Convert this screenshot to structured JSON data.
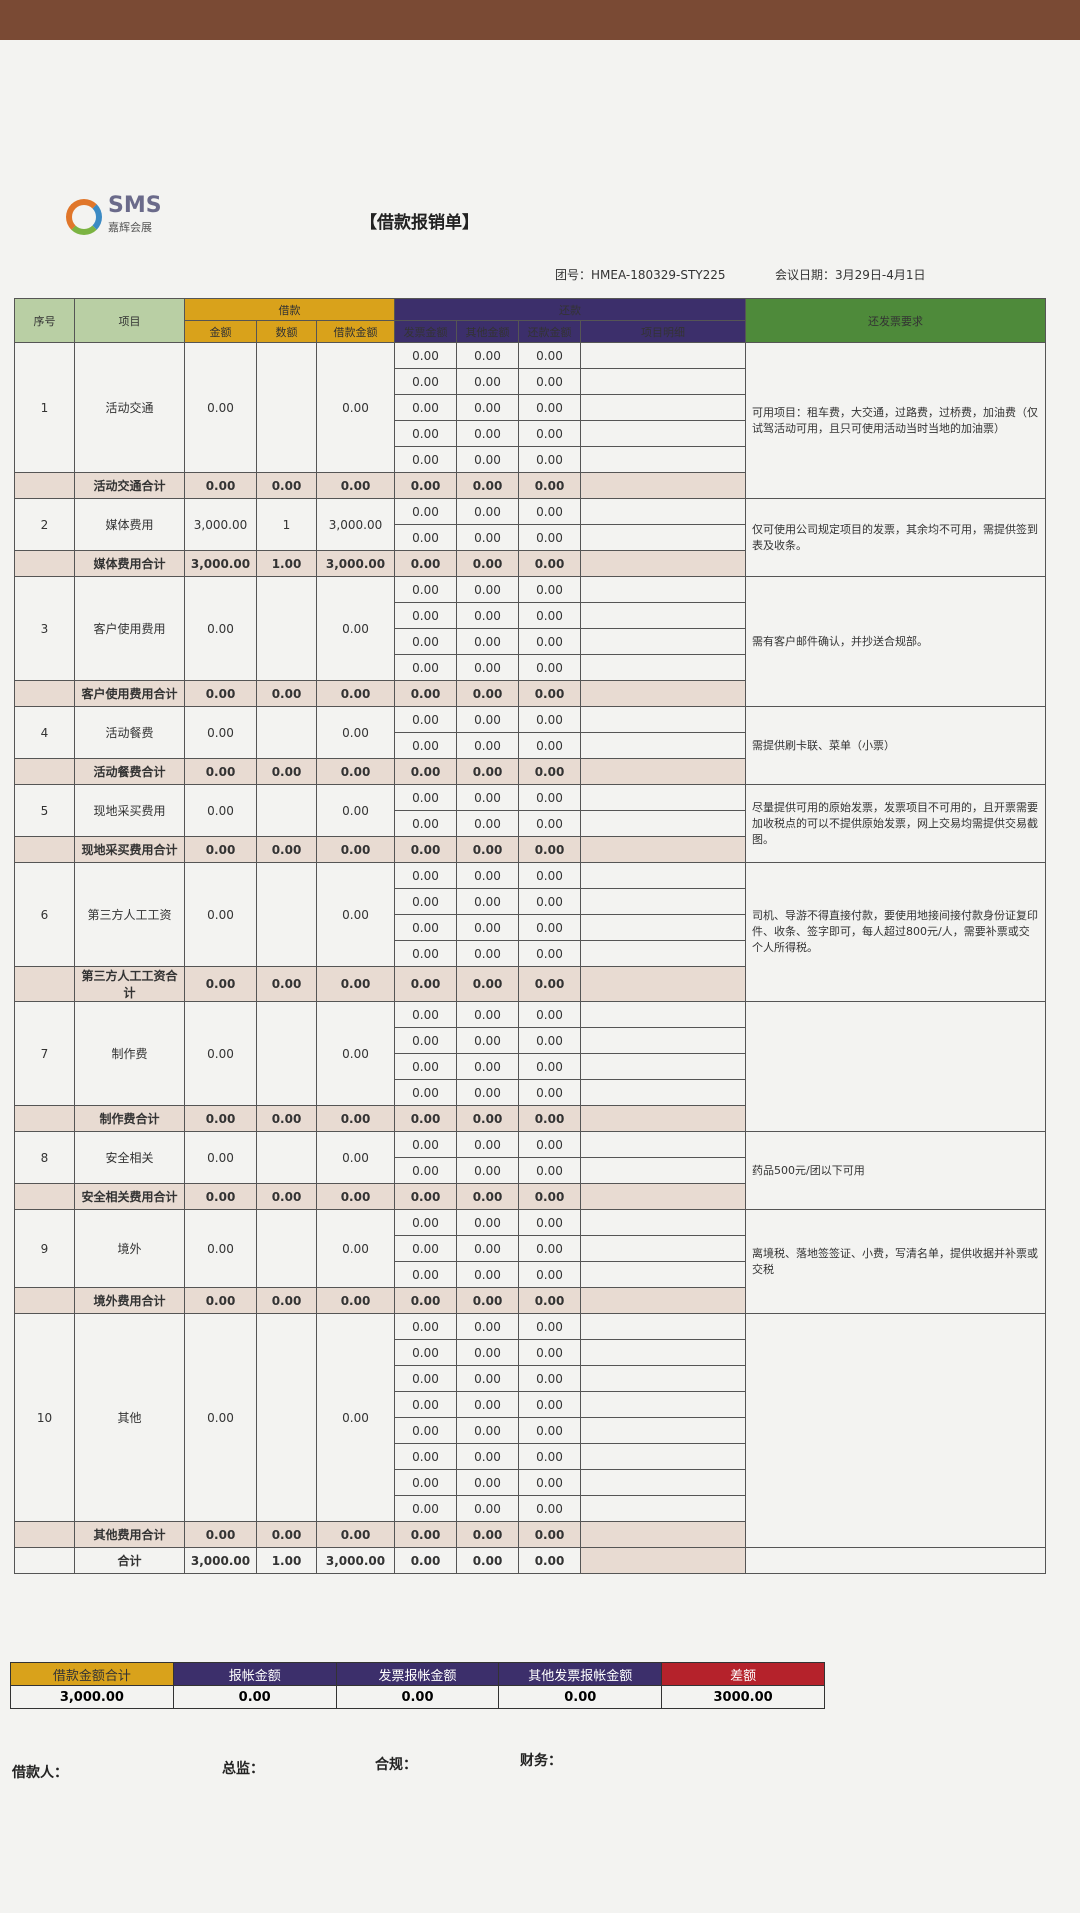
{
  "header": {
    "logo": "SMS",
    "logo_sub": "嘉辉会展",
    "title": "【借款报销单】",
    "group_no": "团号：HMEA-180329-STY225",
    "meeting_date": "会议日期：3月29日-4月1日"
  },
  "table": {
    "columns": {
      "no": "序号",
      "item": "项目",
      "loan": "借款",
      "loan_amount": "金额",
      "loan_count": "数额",
      "loan_total": "借款金额",
      "repay": "还款",
      "invoice_amount": "发票金额",
      "other_amount": "其他金额",
      "repay_amount": "还款金额",
      "detail": "项目明细",
      "requirements": "还发票要求"
    },
    "sections": [
      {
        "no": "1",
        "item": "活动交通",
        "amount": "0.00",
        "total": "0.00",
        "rows": [
          [
            "0.00",
            "0.00",
            "0.00"
          ],
          [
            "0.00",
            "0.00",
            "0.00"
          ],
          [
            "0.00",
            "0.00",
            "0.00"
          ],
          [
            "0.00",
            "0.00",
            "0.00"
          ],
          [
            "0.00",
            "0.00",
            "0.00"
          ]
        ],
        "subtotal": {
          "label": "活动交通合计",
          "amount": "0.00",
          "count": "0.00",
          "total": "0.00",
          "invoice": "0.00",
          "other": "0.00",
          "repay": "0.00"
        },
        "requirement": "可用项目：租车费，大交通，过路费，过桥费，加油费（仅试驾活动可用，且只可使用活动当时当地的加油票）"
      },
      {
        "no": "2",
        "item": "媒体费用",
        "amount": "3,000.00",
        "count": "1",
        "total": "3,000.00",
        "rows": [
          [
            "0.00",
            "0.00",
            "0.00"
          ],
          [
            "0.00",
            "0.00",
            "0.00"
          ]
        ],
        "subtotal": {
          "label": "媒体费用合计",
          "amount": "3,000.00",
          "count": "1.00",
          "total": "3,000.00",
          "invoice": "0.00",
          "other": "0.00",
          "repay": "0.00"
        },
        "requirement": "仅可使用公司规定项目的发票，其余均不可用，需提供签到表及收条。"
      },
      {
        "no": "3",
        "item": "客户使用费用",
        "amount": "0.00",
        "total": "0.00",
        "rows": [
          [
            "0.00",
            "0.00",
            "0.00"
          ],
          [
            "0.00",
            "0.00",
            "0.00"
          ],
          [
            "0.00",
            "0.00",
            "0.00"
          ],
          [
            "0.00",
            "0.00",
            "0.00"
          ]
        ],
        "subtotal": {
          "label": "客户使用费用合计",
          "amount": "0.00",
          "count": "0.00",
          "total": "0.00",
          "invoice": "0.00",
          "other": "0.00",
          "repay": "0.00"
        },
        "requirement": "需有客户邮件确认，并抄送合规部。"
      },
      {
        "no": "4",
        "item": "活动餐费",
        "amount": "0.00",
        "total": "0.00",
        "rows": [
          [
            "0.00",
            "0.00",
            "0.00"
          ],
          [
            "0.00",
            "0.00",
            "0.00"
          ]
        ],
        "subtotal": {
          "label": "活动餐费合计",
          "amount": "0.00",
          "count": "0.00",
          "total": "0.00",
          "invoice": "0.00",
          "other": "0.00",
          "repay": "0.00"
        },
        "requirement": "需提供刷卡联、菜单（小票）"
      },
      {
        "no": "5",
        "item": "现地采买费用",
        "amount": "0.00",
        "total": "0.00",
        "rows": [
          [
            "0.00",
            "0.00",
            "0.00"
          ],
          [
            "0.00",
            "0.00",
            "0.00"
          ]
        ],
        "subtotal": {
          "label": "现地采买费用合计",
          "amount": "0.00",
          "count": "0.00",
          "total": "0.00",
          "invoice": "0.00",
          "other": "0.00",
          "repay": "0.00"
        },
        "requirement": "尽量提供可用的原始发票，发票项目不可用的，且开票需要加收税点的可以不提供原始发票，网上交易均需提供交易截图。"
      },
      {
        "no": "6",
        "item": "第三方人工工资",
        "amount": "0.00",
        "total": "0.00",
        "rows": [
          [
            "0.00",
            "0.00",
            "0.00"
          ],
          [
            "0.00",
            "0.00",
            "0.00"
          ],
          [
            "0.00",
            "0.00",
            "0.00"
          ],
          [
            "0.00",
            "0.00",
            "0.00"
          ]
        ],
        "subtotal": {
          "label": "第三方人工工资合计",
          "amount": "0.00",
          "count": "0.00",
          "total": "0.00",
          "invoice": "0.00",
          "other": "0.00",
          "repay": "0.00"
        },
        "requirement": "司机、导游不得直接付款，要使用地接间接付款身份证复印件、收条、签字即可，每人超过800元/人，需要补票或交个人所得税。"
      },
      {
        "no": "7",
        "item": "制作费",
        "amount": "0.00",
        "total": "0.00",
        "rows": [
          [
            "0.00",
            "0.00",
            "0.00"
          ],
          [
            "0.00",
            "0.00",
            "0.00"
          ],
          [
            "0.00",
            "0.00",
            "0.00"
          ],
          [
            "0.00",
            "0.00",
            "0.00"
          ]
        ],
        "subtotal": {
          "label": "制作费合计",
          "amount": "0.00",
          "count": "0.00",
          "total": "0.00",
          "invoice": "0.00",
          "other": "0.00",
          "repay": "0.00"
        }
      },
      {
        "no": "8",
        "item": "安全相关",
        "amount": "0.00",
        "total": "0.00",
        "rows": [
          [
            "0.00",
            "0.00",
            "0.00"
          ],
          [
            "0.00",
            "0.00",
            "0.00"
          ]
        ],
        "subtotal": {
          "label": "安全相关费用合计",
          "amount": "0.00",
          "count": "0.00",
          "total": "0.00",
          "invoice": "0.00",
          "other": "0.00",
          "repay": "0.00"
        },
        "requirement": "药品500元/团以下可用"
      },
      {
        "no": "9",
        "item": "境外",
        "amount": "0.00",
        "total": "0.00",
        "rows": [
          [
            "0.00",
            "0.00",
            "0.00"
          ],
          [
            "0.00",
            "0.00",
            "0.00"
          ],
          [
            "0.00",
            "0.00",
            "0.00"
          ]
        ],
        "subtotal": {
          "label": "境外费用合计",
          "amount": "0.00",
          "count": "0.00",
          "total": "0.00",
          "invoice": "0.00",
          "other": "0.00",
          "repay": "0.00"
        },
        "requirement": "离境税、落地签签证、小费，写清名单，提供收据并补票或交税"
      },
      {
        "no": "10",
        "item": "其他",
        "amount": "0.00",
        "total": "0.00",
        "rows": [
          [
            "0.00",
            "0.00",
            "0.00"
          ],
          [
            "0.00",
            "0.00",
            "0.00"
          ],
          [
            "0.00",
            "0.00",
            "0.00"
          ],
          [
            "0.00",
            "0.00",
            "0.00"
          ],
          [
            "0.00",
            "0.00",
            "0.00"
          ],
          [
            "0.00",
            "0.00",
            "0.00"
          ],
          [
            "0.00",
            "0.00",
            "0.00"
          ],
          [
            "0.00",
            "0.00",
            "0.00"
          ]
        ],
        "subtotal": {
          "label": "其他费用合计",
          "amount": "0.00",
          "count": "0.00",
          "total": "0.00",
          "invoice": "0.00",
          "other": "0.00",
          "repay": "0.00"
        }
      }
    ],
    "total": {
      "label": "合计",
      "amount": "3,000.00",
      "count": "1.00",
      "total": "3,000.00",
      "invoice": "0.00",
      "other": "0.00",
      "repay": "0.00"
    }
  },
  "summary": {
    "headers": [
      "借款金额合计",
      "报帐金额",
      "发票报帐金额",
      "其他发票报帐金额",
      "差额"
    ],
    "values": [
      "3,000.00",
      "0.00",
      "0.00",
      "0.00",
      "3000.00"
    ]
  },
  "signatures": [
    "借款人：",
    "总监：",
    "合规：",
    "财务："
  ]
}
